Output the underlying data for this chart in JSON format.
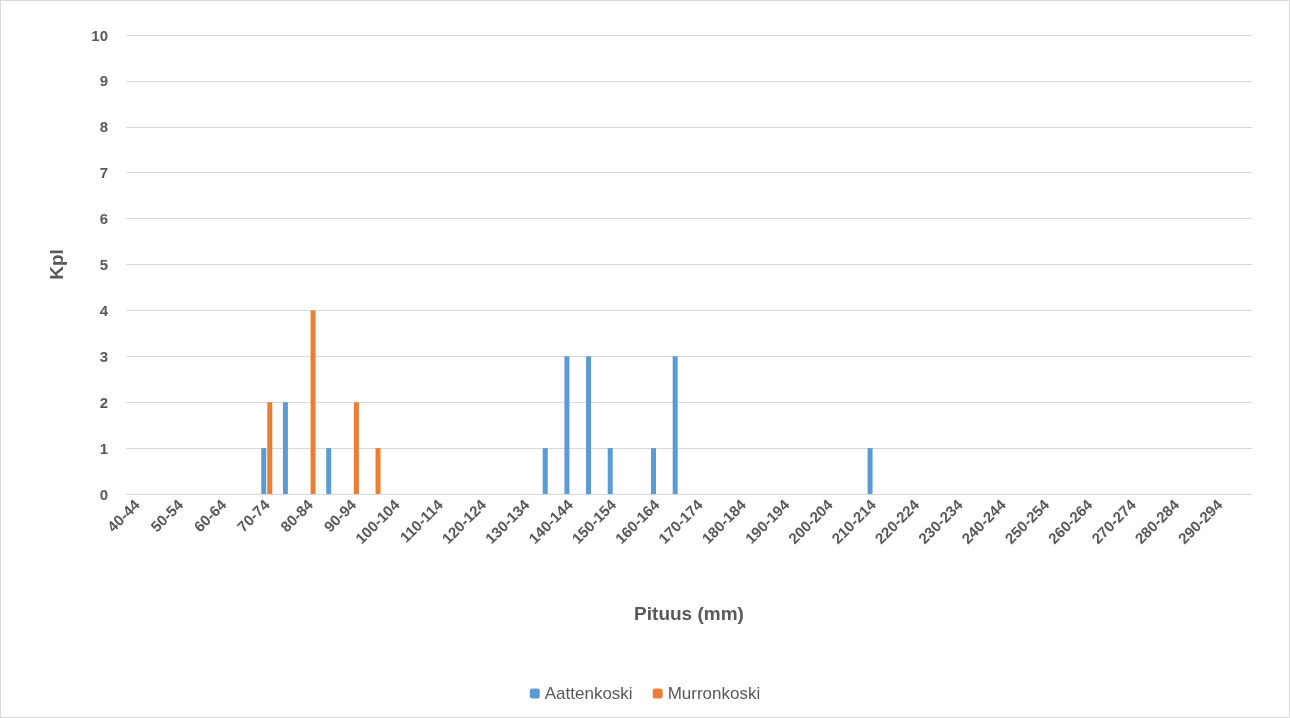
{
  "chart_data": {
    "type": "bar",
    "xlabel": "Pituus (mm)",
    "ylabel": "Kpl",
    "categories": [
      "40-44",
      null,
      "50-54",
      null,
      "60-64",
      null,
      "70-74",
      null,
      "80-84",
      null,
      "90-94",
      null,
      "100-104",
      null,
      "110-114",
      null,
      "120-124",
      null,
      "130-134",
      null,
      "140-144",
      null,
      "150-154",
      null,
      "160-164",
      null,
      "170-174",
      null,
      "180-184",
      null,
      "190-194",
      null,
      "200-204",
      null,
      "210-214",
      null,
      "220-224",
      null,
      "230-234",
      null,
      "240-244",
      null,
      "250-254",
      null,
      "260-264",
      null,
      "270-274",
      null,
      "280-284",
      null,
      "290-294",
      null
    ],
    "series": [
      {
        "name": "Aattenkoski",
        "color": "#5b9bd5",
        "values": [
          0,
          0,
          0,
          0,
          0,
          0,
          1,
          2,
          0,
          1,
          0,
          0,
          0,
          0,
          0,
          0,
          0,
          0,
          0,
          1,
          3,
          3,
          1,
          0,
          1,
          3,
          0,
          0,
          0,
          0,
          0,
          0,
          0,
          0,
          1,
          0,
          0,
          0,
          0,
          0,
          0,
          0,
          0,
          0,
          0,
          0,
          0,
          0,
          0,
          0,
          0,
          0
        ]
      },
      {
        "name": "Murronkoski",
        "color": "#ed7d31",
        "values": [
          0,
          0,
          0,
          0,
          0,
          0,
          2,
          0,
          4,
          0,
          2,
          1,
          0,
          0,
          0,
          0,
          0,
          0,
          0,
          0,
          0,
          0,
          0,
          0,
          0,
          0,
          0,
          0,
          0,
          0,
          0,
          0,
          0,
          0,
          0,
          0,
          0,
          0,
          0,
          0,
          0,
          0,
          0,
          0,
          0,
          0,
          0,
          0,
          0,
          0,
          0,
          0
        ]
      }
    ],
    "ylim": [
      0,
      10
    ],
    "yticks": [
      0,
      1,
      2,
      3,
      4,
      5,
      6,
      7,
      8,
      9,
      10
    ],
    "grid": "y",
    "legend": "bottom"
  }
}
